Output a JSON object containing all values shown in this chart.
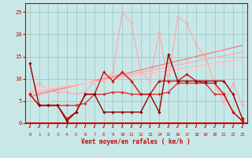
{
  "bg_color": "#c8e8e8",
  "grid_color": "#a0c8c8",
  "text_color": "#cc0000",
  "border_color": "#cc0000",
  "xlabel": "Vent moyen/en rafales ( km/h )",
  "x_ticks": [
    0,
    1,
    2,
    3,
    4,
    5,
    6,
    7,
    8,
    9,
    10,
    11,
    12,
    13,
    14,
    15,
    16,
    17,
    18,
    19,
    20,
    21,
    22,
    23
  ],
  "ylim": [
    0,
    27
  ],
  "yticks": [
    0,
    5,
    10,
    15,
    20,
    25
  ],
  "lines": [
    {
      "color": "#ffaaaa",
      "lw": 0.9,
      "marker": "D",
      "ms": 1.8,
      "x": [
        0,
        1,
        2,
        3,
        4,
        5,
        6,
        7,
        8,
        9,
        10,
        11,
        12,
        13,
        14,
        15,
        16,
        17,
        18,
        19,
        20,
        21,
        22,
        23
      ],
      "y": [
        6.5,
        9.0,
        7.5,
        7.0,
        7.0,
        6.5,
        7.0,
        9.5,
        9.5,
        11.5,
        25.0,
        22.5,
        11.5,
        9.5,
        20.5,
        9.0,
        24.0,
        22.5,
        17.5,
        15.0,
        9.0,
        4.5,
        9.0,
        4.0
      ]
    },
    {
      "color": "#ff7777",
      "lw": 0.9,
      "marker": null,
      "ms": 0,
      "x": [
        0,
        23
      ],
      "y": [
        6.0,
        17.5
      ]
    },
    {
      "color": "#ffaaaa",
      "lw": 0.9,
      "marker": null,
      "ms": 0,
      "x": [
        0,
        23
      ],
      "y": [
        6.5,
        16.0
      ]
    },
    {
      "color": "#ffbbbb",
      "lw": 0.9,
      "marker": null,
      "ms": 0,
      "x": [
        0,
        23
      ],
      "y": [
        7.0,
        14.5
      ]
    },
    {
      "color": "#ffcccc",
      "lw": 0.9,
      "marker": null,
      "ms": 0,
      "x": [
        0,
        23
      ],
      "y": [
        7.5,
        13.5
      ]
    },
    {
      "color": "#dd3333",
      "lw": 1.0,
      "marker": "D",
      "ms": 1.8,
      "x": [
        0,
        1,
        2,
        3,
        4,
        5,
        6,
        7,
        8,
        9,
        10,
        11,
        12,
        13,
        14,
        15,
        16,
        17,
        18,
        19,
        20,
        21,
        22,
        23
      ],
      "y": [
        6.5,
        4.0,
        4.0,
        4.0,
        4.0,
        4.0,
        4.5,
        6.5,
        6.5,
        7.0,
        7.0,
        6.5,
        6.5,
        6.5,
        6.5,
        7.0,
        9.0,
        9.0,
        9.0,
        9.0,
        6.5,
        6.5,
        2.5,
        0.5
      ]
    },
    {
      "color": "#cc1111",
      "lw": 1.0,
      "marker": "D",
      "ms": 1.8,
      "x": [
        0,
        1,
        2,
        3,
        4,
        5,
        6,
        7,
        8,
        9,
        10,
        11,
        12,
        13,
        14,
        15,
        16,
        17,
        18,
        19,
        20,
        21,
        22,
        23
      ],
      "y": [
        6.5,
        4.0,
        4.0,
        4.0,
        1.0,
        2.5,
        6.5,
        6.5,
        11.5,
        9.5,
        11.5,
        9.5,
        6.5,
        6.5,
        9.5,
        9.5,
        9.5,
        11.0,
        9.5,
        9.0,
        9.0,
        6.5,
        2.5,
        0.5
      ]
    },
    {
      "color": "#990000",
      "lw": 1.0,
      "marker": "D",
      "ms": 1.8,
      "x": [
        0,
        1,
        2,
        3,
        4,
        5,
        6,
        7,
        8,
        9,
        10,
        11,
        12,
        13,
        14,
        15,
        16,
        17,
        18,
        19,
        20,
        21,
        22,
        23
      ],
      "y": [
        13.5,
        4.0,
        4.0,
        4.0,
        0.5,
        2.5,
        6.5,
        6.5,
        2.5,
        2.5,
        2.5,
        2.5,
        2.5,
        6.5,
        2.5,
        15.5,
        9.5,
        9.5,
        9.5,
        9.5,
        9.5,
        9.5,
        6.5,
        1.0
      ]
    }
  ],
  "wind_arrows_x": [
    0,
    1,
    2,
    3,
    4,
    5,
    6,
    7,
    8,
    9,
    10,
    11,
    12,
    13,
    14,
    15,
    16,
    17,
    18,
    19,
    20,
    21,
    22,
    23
  ]
}
